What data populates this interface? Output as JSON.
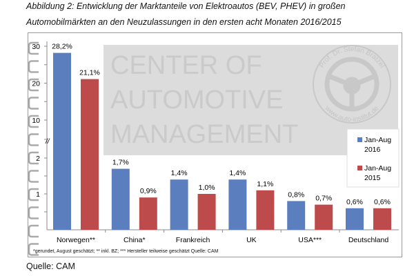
{
  "title_line1": "Abbildung 2: Entwicklung der Marktanteile von Elektroautos (BEV, PHEV) in großen",
  "title_line2": "Automobilmärkten an den Neuzulassungen in den ersten acht Monaten 2016/2015",
  "source": "Quelle: CAM",
  "footnote": "*gerundet, August geschätzt; ** inkl. BZ; *** Hersteller teilweise geschätzt   Quelle: CAM",
  "watermark": {
    "lines": [
      "CENTER OF",
      "AUTOMOTIVE",
      "MANAGEMENT"
    ],
    "seal_top": "Prof. Dr. Stefan Bratzel",
    "seal_bottom": "www.auto-institut.de",
    "seal_icon": "steering-wheel-icon"
  },
  "colors": {
    "series_2016": "#5b7fbe",
    "series_2015": "#be4b4b",
    "watermark": "#dcdcdc"
  },
  "chart_data": {
    "type": "bar",
    "categories": [
      "Norwegen**",
      "China*",
      "Frankreich",
      "UK",
      "USA***",
      "Deutschland"
    ],
    "series": [
      {
        "name": "Jan-Aug 2016",
        "values": [
          28.2,
          1.7,
          1.4,
          1.4,
          0.8,
          0.6
        ],
        "labels": [
          "28,2%",
          "1,7%",
          "1,4%",
          "1,4%",
          "0,8%",
          "0,6%"
        ]
      },
      {
        "name": "Jan-Aug 2015",
        "values": [
          21.1,
          0.9,
          1.0,
          1.1,
          0.7,
          0.6
        ],
        "labels": [
          "21,1%",
          "0,9%",
          "1,0%",
          "1,1%",
          "0,7%",
          "0,6%"
        ]
      }
    ],
    "legend": [
      [
        "Jan-Aug",
        "2016"
      ],
      [
        "Jan-Aug",
        "2015"
      ]
    ],
    "legend_position": "right",
    "y_ticks": [
      "1",
      "2",
      "10",
      "20",
      "30"
    ],
    "y_axis_break": "//",
    "y_scale": "broken: 0-2 linear, 10-30 linear",
    "ylim": [
      0,
      30
    ],
    "grid": false
  }
}
